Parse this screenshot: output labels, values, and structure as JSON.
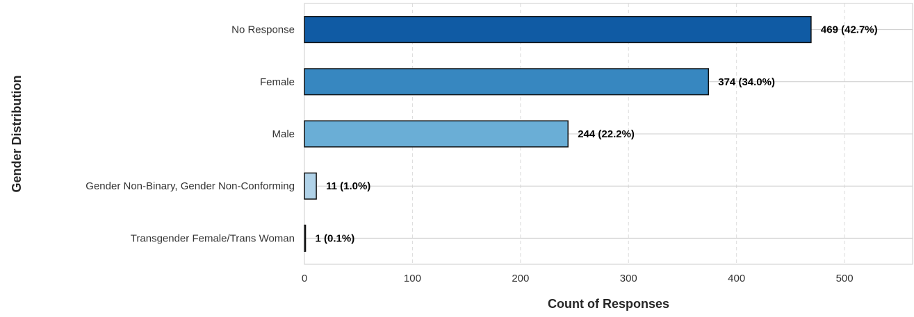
{
  "chart_data": {
    "type": "bar",
    "orientation": "horizontal",
    "title": "",
    "xlabel": "Count of Responses",
    "ylabel": "Gender Distribution",
    "categories": [
      "No Response",
      "Female",
      "Male",
      "Gender Non-Binary, Gender Non-Conforming",
      "Transgender Female/Trans Woman"
    ],
    "values": [
      469,
      374,
      244,
      11,
      1
    ],
    "data_labels": [
      "469 (42.7%)",
      "374 (34.0%)",
      "244 (22.2%)",
      "11 (1.0%)",
      "1 (0.1%)"
    ],
    "bar_colors": [
      "#105ba4",
      "#3787c0",
      "#6aaed6",
      "#b0d2e8",
      "#e3eef8"
    ],
    "xlim": [
      0,
      563
    ],
    "xticks": [
      0,
      100,
      200,
      300,
      400,
      500
    ],
    "xtick_labels": [
      "0",
      "100",
      "200",
      "300",
      "400",
      "500"
    ],
    "grid": true
  }
}
